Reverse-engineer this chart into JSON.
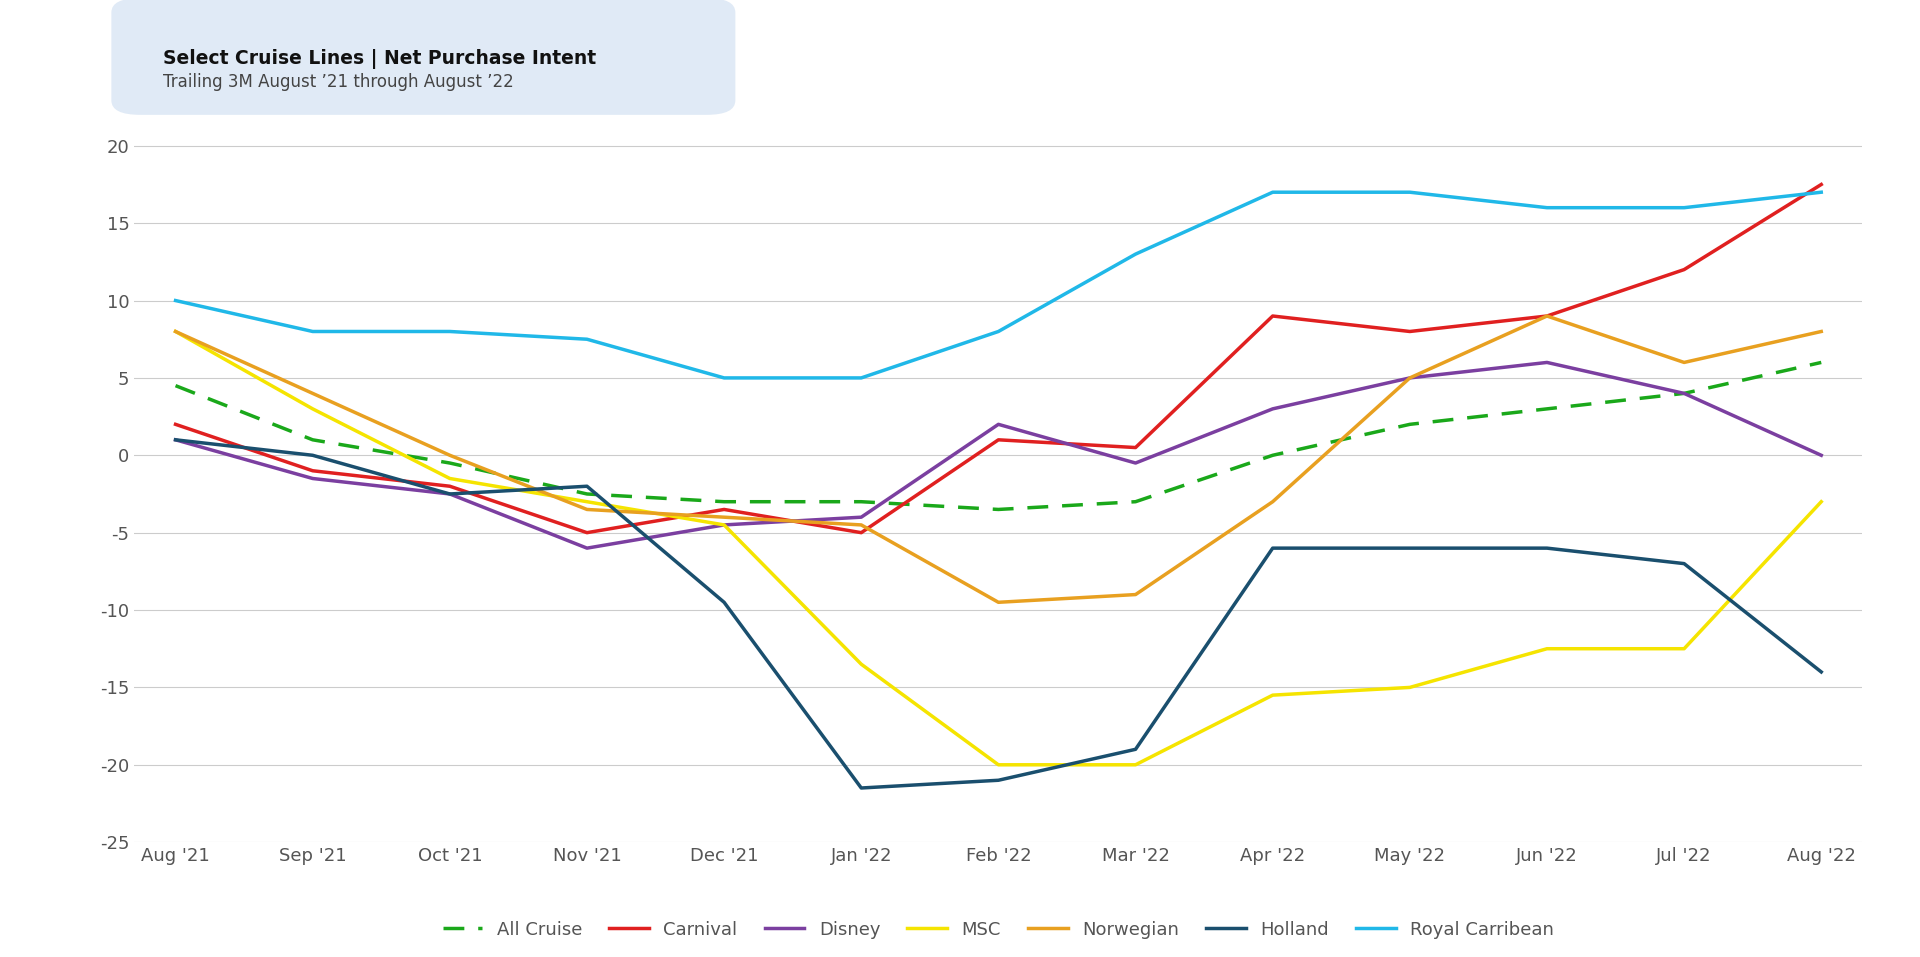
{
  "x_labels": [
    "Aug '21",
    "Sep '21",
    "Oct '21",
    "Nov '21",
    "Dec '21",
    "Jan '22",
    "Feb '22",
    "Mar '22",
    "Apr '22",
    "May '22",
    "Jun '22",
    "Jul '22",
    "Aug '22"
  ],
  "series": {
    "All Cruise": {
      "values": [
        4.5,
        1.0,
        -0.5,
        -2.5,
        -3.0,
        -3.0,
        -3.5,
        -3.0,
        0.0,
        2.0,
        3.0,
        4.0,
        6.0
      ],
      "color": "#1AA81A",
      "linestyle": "dashed",
      "linewidth": 2.5,
      "dashes": [
        6,
        4
      ]
    },
    "Carnival": {
      "values": [
        2.0,
        -1.0,
        -2.0,
        -5.0,
        -3.5,
        -5.0,
        1.0,
        0.5,
        9.0,
        8.0,
        9.0,
        12.0,
        17.5
      ],
      "color": "#E02020",
      "linestyle": "solid",
      "linewidth": 2.5,
      "dashes": null
    },
    "Disney": {
      "values": [
        1.0,
        -1.5,
        -2.5,
        -6.0,
        -4.5,
        -4.0,
        2.0,
        -0.5,
        3.0,
        5.0,
        6.0,
        4.0,
        0.0
      ],
      "color": "#7B3FA0",
      "linestyle": "solid",
      "linewidth": 2.5,
      "dashes": null
    },
    "MSC": {
      "values": [
        8.0,
        3.0,
        -1.5,
        -3.0,
        -4.5,
        -13.5,
        -20.0,
        -20.0,
        -15.5,
        -15.0,
        -12.5,
        -12.5,
        -3.0
      ],
      "color": "#F5E400",
      "linestyle": "solid",
      "linewidth": 2.5,
      "dashes": null
    },
    "Norwegian": {
      "values": [
        8.0,
        4.0,
        0.0,
        -3.5,
        -4.0,
        -4.5,
        -9.5,
        -9.0,
        -3.0,
        5.0,
        9.0,
        6.0,
        8.0
      ],
      "color": "#E8A020",
      "linestyle": "solid",
      "linewidth": 2.5,
      "dashes": null
    },
    "Holland": {
      "values": [
        1.0,
        0.0,
        -2.5,
        -2.0,
        -9.5,
        -21.5,
        -21.0,
        -19.0,
        -6.0,
        -6.0,
        -6.0,
        -7.0,
        -14.0
      ],
      "color": "#1A4F6E",
      "linestyle": "solid",
      "linewidth": 2.5,
      "dashes": null
    },
    "Royal Carribean": {
      "values": [
        10.0,
        8.0,
        8.0,
        7.5,
        5.0,
        5.0,
        8.0,
        13.0,
        17.0,
        17.0,
        16.0,
        16.0,
        17.0
      ],
      "color": "#20B8E8",
      "linestyle": "solid",
      "linewidth": 2.5,
      "dashes": null
    }
  },
  "title_bold": "Select Cruise Lines | Net Purchase Intent",
  "title_sub": "Trailing 3M August ’21 through August ’22",
  "ylim": [
    -25,
    22
  ],
  "yticks": [
    -25,
    -20,
    -15,
    -10,
    -5,
    0,
    5,
    10,
    15,
    20
  ],
  "background_color": "#FFFFFF",
  "plot_bg_color": "#FFFFFF",
  "grid_color": "#CCCCCC",
  "legend_order": [
    "All Cruise",
    "Carnival",
    "Disney",
    "MSC",
    "Norwegian",
    "Holland",
    "Royal Carribean"
  ],
  "title_box_color": "#E0EAF6"
}
